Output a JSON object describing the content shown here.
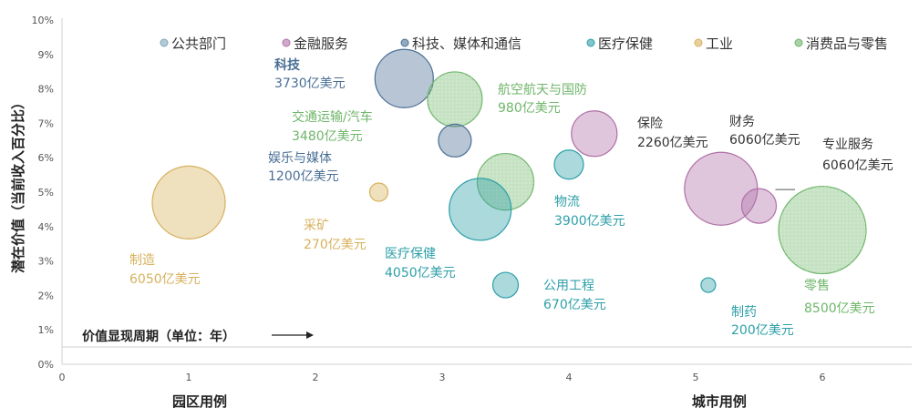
{
  "chart_data": {
    "type": "scatter",
    "title": "",
    "xlabel": "",
    "ylabel": "潜在价值（当前收入百分比）",
    "xlim": [
      0,
      6.7
    ],
    "ylim": [
      0,
      10
    ],
    "x_ticks": [
      "0",
      "1",
      "2",
      "3",
      "4",
      "5",
      "6"
    ],
    "y_ticks": [
      "0%",
      "1%",
      "2%",
      "3%",
      "4%",
      "5%",
      "6%",
      "7%",
      "8%",
      "9%",
      "10%"
    ],
    "grid": false,
    "legend_position": "top",
    "x_group_labels": [
      {
        "label": "园区用例",
        "x": 1.0
      },
      {
        "label": "城市用例",
        "x": 5.1
      }
    ],
    "period_annotation": "价值显现周期（单位：年）",
    "series": [
      {
        "name": "公共部门",
        "color": "#7fa7b8"
      },
      {
        "name": "金融服务",
        "color": "#b070a8"
      },
      {
        "name": "科技、媒体和通信",
        "color": "#4a6f95"
      },
      {
        "name": "医疗保健",
        "color": "#2d9fa8"
      },
      {
        "name": "工业",
        "color": "#d7b15c"
      },
      {
        "name": "消费品与零售",
        "color": "#6fb66a"
      }
    ],
    "points": [
      {
        "name": "科技",
        "value": "3730亿美元",
        "series": 2,
        "x": 2.7,
        "y": 8.3,
        "r": 32
      },
      {
        "name": "交通运输/汽车",
        "value": "3480亿美元",
        "series": 5,
        "x": 3.1,
        "y": 7.7,
        "r": 30
      },
      {
        "name": "娱乐与媒体",
        "value": "1200亿美元",
        "series": 2,
        "x": 3.1,
        "y": 6.5,
        "r": 18
      },
      {
        "name": "航空航天与国防",
        "value": "980亿美元",
        "series": 5,
        "x": 3.5,
        "y": 5.3,
        "r": 31
      },
      {
        "name": "医疗保健",
        "value": "4050亿美元",
        "series": 3,
        "x": 3.3,
        "y": 4.5,
        "r": 34
      },
      {
        "name": "物流",
        "value": "3900亿美元",
        "series": 3,
        "x": 4.0,
        "y": 5.8,
        "r": 16
      },
      {
        "name": "公用工程",
        "value": "670亿美元",
        "series": 3,
        "x": 3.5,
        "y": 2.3,
        "r": 14
      },
      {
        "name": "保险",
        "value": "2260亿美元",
        "series": 1,
        "x": 4.2,
        "y": 6.7,
        "r": 25
      },
      {
        "name": "专业服务",
        "value": "6060亿美元",
        "series": 1,
        "x": 5.2,
        "y": 5.1,
        "r": 40
      },
      {
        "name": "财务",
        "value": "6060亿美元",
        "series": 1,
        "x": 5.5,
        "y": 4.6,
        "r": 19
      },
      {
        "name": "零售",
        "value": "8500亿美元",
        "series": 5,
        "x": 6.0,
        "y": 3.9,
        "r": 48
      },
      {
        "name": "制药",
        "value": "200亿美元",
        "series": 3,
        "x": 5.1,
        "y": 2.3,
        "r": 8
      },
      {
        "name": "制造",
        "value": "6050亿美元",
        "series": 4,
        "x": 1.0,
        "y": 4.7,
        "r": 40
      },
      {
        "name": "采矿",
        "value": "270亿美元",
        "series": 4,
        "x": 2.5,
        "y": 5.0,
        "r": 10
      }
    ]
  }
}
